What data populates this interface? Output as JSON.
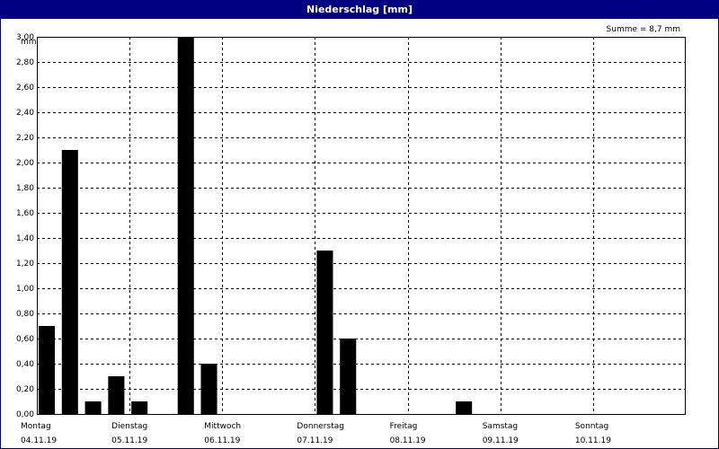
{
  "window": {
    "title": "Niederschlag [mm]"
  },
  "chart_data": {
    "type": "bar",
    "title": "Niederschlag [mm]",
    "ylabel": "mm",
    "ylim": [
      0,
      3.0
    ],
    "y_ticks": [
      "0,00",
      "0,20",
      "0,40",
      "0,60",
      "0,80",
      "1,00",
      "1,20",
      "1,40",
      "1,60",
      "1,80",
      "2,00",
      "2,20",
      "2,40",
      "2,60",
      "2,80",
      "3,00"
    ],
    "grid": true,
    "annotation": "Summe = 8,7 mm",
    "x_range_days": [
      0,
      7
    ],
    "days": [
      {
        "name": "Montag",
        "date": "04.11.19"
      },
      {
        "name": "Dienstag",
        "date": "05.11.19"
      },
      {
        "name": "Mittwoch",
        "date": "06.11.19"
      },
      {
        "name": "Donnerstag",
        "date": "07.11.19"
      },
      {
        "name": "Freitag",
        "date": "08.11.19"
      },
      {
        "name": "Samstag",
        "date": "09.11.19"
      },
      {
        "name": "Sonntag",
        "date": "10.11.19"
      }
    ],
    "values_6h": [
      0.7,
      2.1,
      0.1,
      0.3,
      0.1,
      0,
      3.0,
      0.4,
      0,
      0,
      0,
      0,
      1.3,
      0.6,
      0,
      0,
      0,
      0,
      0.1,
      0,
      0,
      0,
      0,
      0,
      0,
      0,
      0,
      0
    ]
  },
  "colors": {
    "bar": "#000000",
    "titlebar": "#000080",
    "grid": "#000000"
  }
}
